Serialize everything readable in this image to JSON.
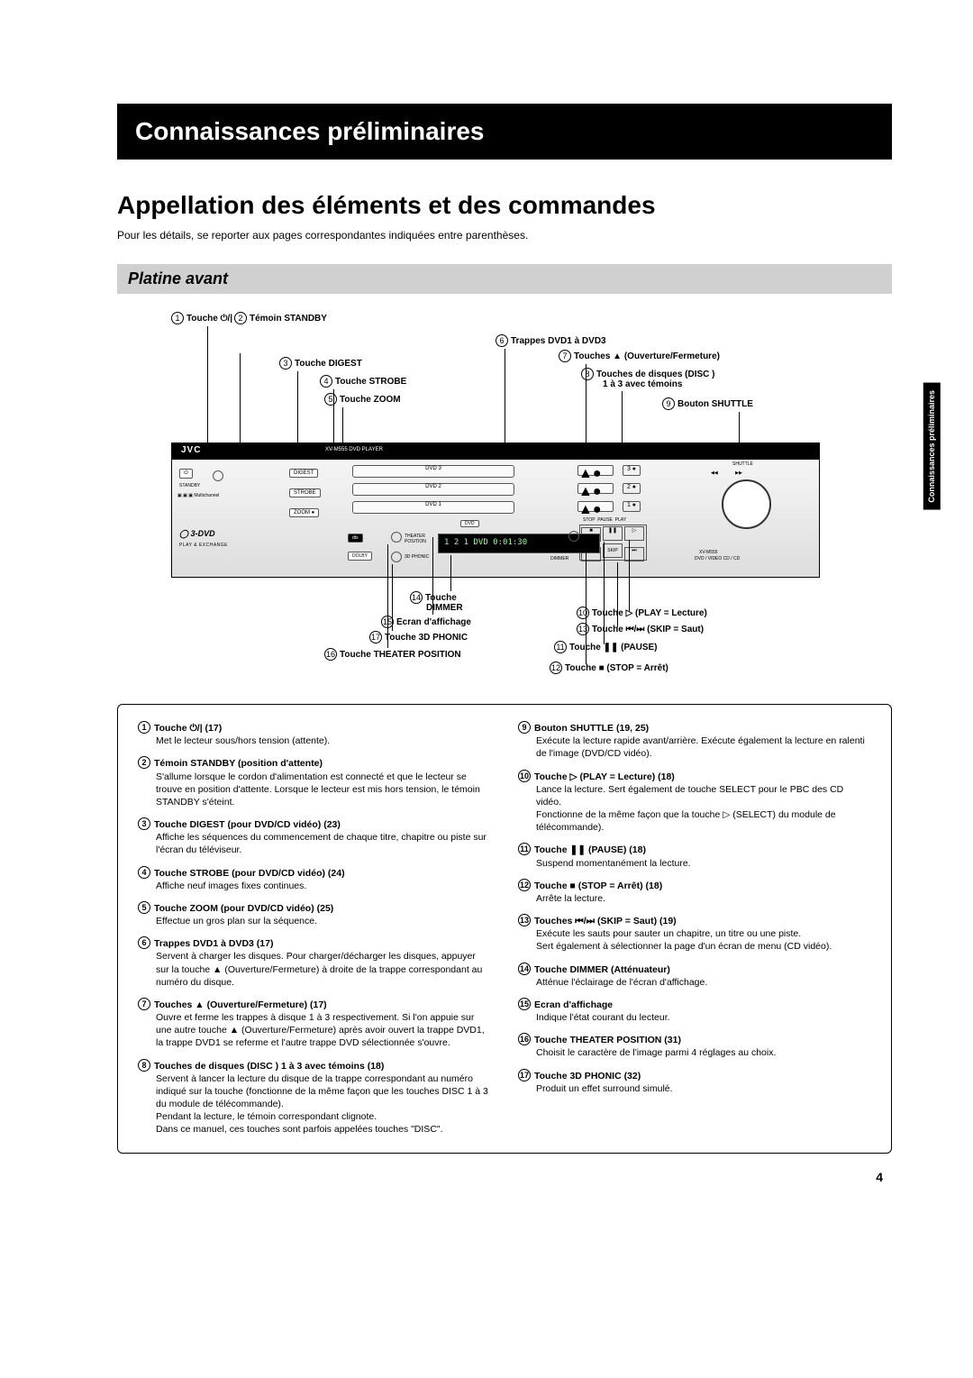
{
  "side_tab": "Connaissances préliminaires",
  "header_bar": "Connaissances préliminaires",
  "title": "Appellation des éléments et des commandes",
  "intro": "Pour les détails, se reporter aux pages correspondantes indiquées entre parenthèses.",
  "section": "Platine avant",
  "page_number": "4",
  "device": {
    "brand": "JVC",
    "model": "XV-M555 DVD PLAYER",
    "display_text": "1  2  1  DVD  0:01:30",
    "logo": "3-DVD",
    "logo_sub": "PLAY & EXCHANGE"
  },
  "callouts": {
    "c1": {
      "n": "1",
      "text": "Touche ⏻/|"
    },
    "c2": {
      "n": "2",
      "text": "Témoin STANDBY"
    },
    "c3": {
      "n": "3",
      "text": "Touche DIGEST"
    },
    "c4": {
      "n": "4",
      "text": "Touche STROBE"
    },
    "c5": {
      "n": "5",
      "text": "Touche ZOOM"
    },
    "c6": {
      "n": "6",
      "text": "Trappes DVD1 à DVD3"
    },
    "c7": {
      "n": "7",
      "text": "Touches ▲ (Ouverture/Fermeture)"
    },
    "c8a": {
      "n": "8",
      "text": "Touches de disques (DISC )"
    },
    "c8b": {
      "text": "1 à 3 avec témoins"
    },
    "c9": {
      "n": "9",
      "text": "Bouton SHUTTLE"
    },
    "c10": {
      "n": "10",
      "text": "Touche ▷ (PLAY = Lecture)"
    },
    "c11": {
      "n": "11",
      "text": "Touche ❚❚ (PAUSE)"
    },
    "c12": {
      "n": "12",
      "text": "Touche ■ (STOP = Arrêt)"
    },
    "c13": {
      "n": "13",
      "text": "Touche ⏮/⏭ (SKIP = Saut)"
    },
    "c14": {
      "n": "14",
      "text": "Touche"
    },
    "c14b": {
      "text": "DIMMER"
    },
    "c15": {
      "n": "15",
      "text": "Ecran d'affichage"
    },
    "c16": {
      "n": "16",
      "text": "Touche THEATER POSITION"
    },
    "c17": {
      "n": "17",
      "text": "Touche 3D PHONIC"
    }
  },
  "glyphs": {
    "power": "⏻",
    "eject": "▲",
    "play": "▷",
    "stop": "■",
    "skip": "⏮/⏭"
  },
  "descriptions": [
    {
      "n": "1",
      "hd": "Touche ⏻/| (17)",
      "body": "Met le lecteur sous/hors tension (attente)."
    },
    {
      "n": "2",
      "hd": "Témoin STANDBY (position d'attente)",
      "body": "S'allume lorsque le cordon d'alimentation est connecté et que le lecteur se trouve en position d'attente. Lorsque le lecteur est mis hors tension, le témoin STANDBY s'éteint."
    },
    {
      "n": "3",
      "hd": "Touche DIGEST (pour DVD/CD vidéo) (23)",
      "body": "Affiche les séquences du commencement de chaque titre, chapitre ou piste sur l'écran du téléviseur."
    },
    {
      "n": "4",
      "hd": "Touche STROBE (pour DVD/CD vidéo) (24)",
      "body": "Affiche neuf images fixes continues."
    },
    {
      "n": "5",
      "hd": "Touche ZOOM (pour DVD/CD vidéo) (25)",
      "body": "Effectue un gros plan sur la séquence."
    },
    {
      "n": "6",
      "hd": "Trappes DVD1 à DVD3 (17)",
      "body": "Servent à charger les disques. Pour charger/décharger les disques, appuyer sur la touche ▲ (Ouverture/Fermeture) à droite de la trappe correspondant au numéro du disque."
    },
    {
      "n": "7",
      "hd": "Touches ▲ (Ouverture/Fermeture) (17)",
      "body": "Ouvre et ferme les trappes à disque 1 à 3 respectivement. Si l'on appuie sur une autre touche ▲ (Ouverture/Fermeture) après avoir ouvert la trappe DVD1, la trappe DVD1 se referme et l'autre trappe DVD sélectionnée s'ouvre."
    },
    {
      "n": "8",
      "hd": "Touches de disques (DISC ) 1 à 3 avec témoins (18)",
      "body": "Servent à lancer la lecture du disque de la trappe correspondant au numéro indiqué sur la touche (fonctionne de la même façon que les touches DISC 1 à 3 du module de télécommande).\nPendant la lecture, le témoin correspondant clignote.\nDans ce manuel, ces touches sont parfois appelées touches \"DISC\"."
    },
    {
      "n": "9",
      "hd": "Bouton SHUTTLE (19, 25)",
      "body": "Exécute la lecture rapide avant/arrière. Exécute également la lecture en ralenti de l'image (DVD/CD vidéo)."
    },
    {
      "n": "10",
      "hd": "Touche ▷ (PLAY = Lecture) (18)",
      "body": "Lance la lecture. Sert également de touche SELECT pour le PBC des CD vidéo.\nFonctionne de la même façon que la touche ▷ (SELECT) du module de télécommande)."
    },
    {
      "n": "11",
      "hd": "Touche ❚❚ (PAUSE) (18)",
      "body": "Suspend momentanément la lecture."
    },
    {
      "n": "12",
      "hd": "Touche ■ (STOP = Arrêt) (18)",
      "body": "Arrête la lecture."
    },
    {
      "n": "13",
      "hd": "Touches ⏮/⏭ (SKIP = Saut) (19)",
      "body": "Exécute les sauts pour sauter un chapitre, un titre ou une piste.\nSert également à sélectionner la page d'un écran de menu (CD vidéo)."
    },
    {
      "n": "14",
      "hd": "Touche DIMMER (Atténuateur)",
      "body": "Atténue l'éclairage de l'écran d'affichage."
    },
    {
      "n": "15",
      "hd": "Ecran d'affichage",
      "body": "Indique l'état courant du lecteur."
    },
    {
      "n": "16",
      "hd": "Touche THEATER POSITION (31)",
      "body": "Choisit le caractère de l'image parmi 4 réglages au choix."
    },
    {
      "n": "17",
      "hd": "Touche 3D PHONIC (32)",
      "body": "Produit un effet surround simulé."
    }
  ]
}
